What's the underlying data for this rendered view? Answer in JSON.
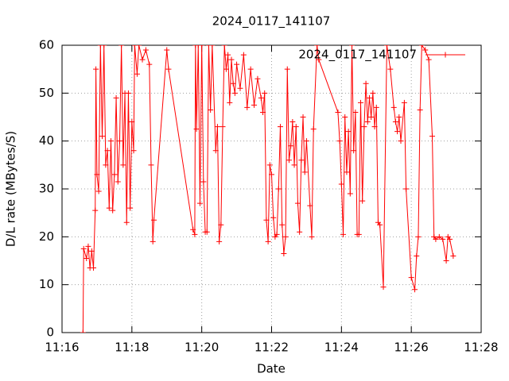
{
  "chart_data": {
    "type": "line",
    "title": "2024_0117_141107",
    "xlabel": "Date",
    "ylabel": "D/L rate (MBytes/S)",
    "x": [
      676.6,
      676.62,
      676.7,
      676.75,
      676.8,
      676.85,
      676.9,
      676.95,
      676.97,
      677.0,
      677.05,
      677.1,
      677.15,
      677.2,
      677.25,
      677.3,
      677.35,
      677.4,
      677.45,
      677.5,
      677.55,
      677.6,
      677.65,
      677.7,
      677.75,
      677.8,
      677.85,
      677.9,
      677.95,
      678.0,
      678.05,
      678.08,
      678.15,
      678.2,
      678.3,
      678.4,
      678.5,
      678.55,
      678.6,
      678.63,
      679.0,
      679.05,
      679.75,
      679.8,
      679.82,
      679.85,
      679.9,
      679.95,
      680.0,
      680.05,
      680.1,
      680.15,
      680.2,
      680.25,
      680.3,
      680.4,
      680.45,
      680.5,
      680.55,
      680.6,
      680.65,
      680.7,
      680.75,
      680.8,
      680.85,
      680.9,
      680.95,
      681.0,
      681.1,
      681.2,
      681.3,
      681.4,
      681.5,
      681.6,
      681.7,
      681.75,
      681.8,
      681.85,
      681.9,
      681.95,
      682.0,
      682.05,
      682.1,
      682.15,
      682.2,
      682.25,
      682.3,
      682.35,
      682.4,
      682.45,
      682.5,
      682.55,
      682.6,
      682.65,
      682.7,
      682.75,
      682.8,
      682.85,
      682.9,
      682.95,
      683.0,
      683.1,
      683.15,
      683.2,
      683.3,
      683.35,
      683.9,
      683.95,
      684.0,
      684.05,
      684.1,
      684.15,
      684.2,
      684.25,
      684.3,
      684.35,
      684.4,
      684.45,
      684.5,
      684.55,
      684.6,
      684.65,
      684.7,
      684.75,
      684.8,
      684.85,
      684.9,
      684.95,
      685.0,
      685.05,
      685.1,
      685.2,
      685.3,
      685.4,
      685.5,
      685.55,
      685.6,
      685.65,
      685.7,
      685.8,
      685.85,
      686.0,
      686.1,
      686.15,
      686.2,
      686.25,
      686.3,
      686.4,
      686.5,
      686.6,
      686.65,
      686.7,
      686.8,
      686.9,
      687.0,
      687.05,
      687.1,
      687.2
    ],
    "series": [
      {
        "name": "2024_0117_141107",
        "color": "#ff0000",
        "values": [
          0,
          17.5,
          15.5,
          18,
          13.5,
          17,
          13.5,
          25.5,
          55,
          33,
          29.5,
          60,
          41,
          60,
          35,
          38,
          26,
          40,
          25.5,
          33,
          49,
          31.5,
          40,
          60,
          35,
          50,
          23,
          50,
          26,
          44,
          38,
          60,
          54,
          60,
          57,
          59,
          56,
          35,
          19,
          23.5,
          59,
          55,
          21.5,
          20.5,
          60,
          42.5,
          60,
          27,
          60,
          31.5,
          21,
          21,
          60,
          46.5,
          60,
          38,
          43,
          19,
          22.5,
          43,
          60,
          55,
          58,
          48,
          57,
          52,
          50,
          56,
          51,
          58,
          47,
          55,
          47.5,
          53,
          49,
          46,
          50,
          23.5,
          19,
          35,
          33,
          24,
          20,
          20.5,
          30,
          43,
          22.5,
          16.5,
          20,
          55,
          36,
          39,
          44,
          35,
          43,
          27,
          21,
          36,
          45,
          33.5,
          40,
          26.5,
          20,
          42.5,
          60,
          57,
          46,
          40,
          31,
          20.5,
          45,
          33.5,
          42,
          29,
          60,
          38,
          46,
          20.5,
          20.5,
          48,
          27.5,
          43,
          52,
          44,
          49,
          45,
          50,
          43,
          47,
          23,
          22.5,
          9.5,
          60,
          55,
          47,
          44,
          42,
          45,
          40,
          48,
          30,
          11.5,
          9,
          16,
          20,
          46.5,
          60,
          59,
          57,
          41,
          20,
          19.5,
          20,
          19.5,
          15,
          20,
          19.5,
          16
        ]
      }
    ],
    "xlim": [
      676,
      688
    ],
    "xticks": [
      {
        "value": 676,
        "label": "11:16"
      },
      {
        "value": 678,
        "label": "11:18"
      },
      {
        "value": 680,
        "label": "11:20"
      },
      {
        "value": 682,
        "label": "11:22"
      },
      {
        "value": 684,
        "label": "11:24"
      },
      {
        "value": 686,
        "label": "11:26"
      },
      {
        "value": 688,
        "label": "11:28"
      }
    ],
    "ylim": [
      0,
      60
    ],
    "yticks": [
      0,
      10,
      20,
      30,
      40,
      50,
      60
    ],
    "grid": true,
    "legend": "upper right"
  }
}
